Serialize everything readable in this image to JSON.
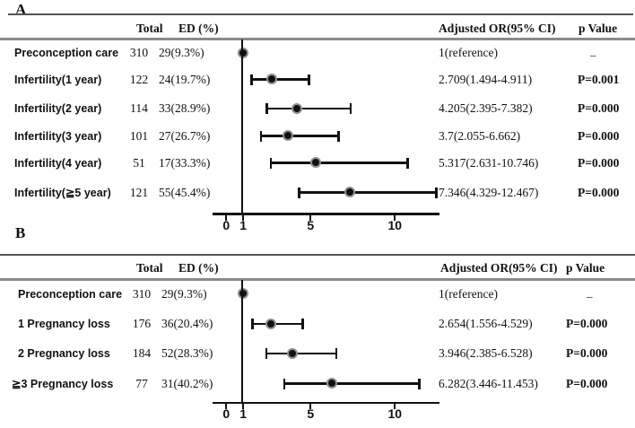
{
  "colors": {
    "ink": "#111111",
    "rule_dark": "#555555",
    "rule_gray": "#8a8a8a",
    "marker_core": "#111111",
    "marker_ring": "#8f8f8f"
  },
  "panels": [
    {
      "panel_label": "A",
      "columns": {
        "total": "Total",
        "ed": "ED (%)",
        "or": "Adjusted OR(95% CI)",
        "p": "p Value"
      },
      "axis_ticks": [
        "0",
        "1",
        "5",
        "10"
      ],
      "rows": [
        {
          "label": "Preconception care",
          "total": "310",
          "ed": "29(9.3%)",
          "or_text": "1(reference)",
          "p_text": "_",
          "or": 1,
          "lo": null,
          "hi": null,
          "reference": true
        },
        {
          "label": "Infertility(1 year)",
          "total": "122",
          "ed": "24(19.7%)",
          "or_text": "2.709(1.494-4.911)",
          "p_text": "P=0.001",
          "or": 2.709,
          "lo": 1.494,
          "hi": 4.911,
          "reference": false
        },
        {
          "label": "Infertility(2 year)",
          "total": "114",
          "ed": "33(28.9%)",
          "or_text": "4.205(2.395-7.382)",
          "p_text": "P=0.000",
          "or": 4.205,
          "lo": 2.395,
          "hi": 7.382,
          "reference": false
        },
        {
          "label": "Infertility(3 year)",
          "total": "101",
          "ed": "27(26.7%)",
          "or_text": "3.7(2.055-6.662)",
          "p_text": "P=0.000",
          "or": 3.7,
          "lo": 2.055,
          "hi": 6.662,
          "reference": false
        },
        {
          "label": "Infertility(4 year)",
          "total": "51",
          "ed": "17(33.3%)",
          "or_text": "5.317(2.631-10.746)",
          "p_text": "P=0.000",
          "or": 5.317,
          "lo": 2.631,
          "hi": 10.746,
          "reference": false
        },
        {
          "label": "Infertility(≧5 year)",
          "total": "121",
          "ed": "55(45.4%)",
          "or_text": "7.346(4.329-12.467)",
          "p_text": "P=0.000",
          "or": 7.346,
          "lo": 4.329,
          "hi": 12.467,
          "reference": false
        }
      ]
    },
    {
      "panel_label": "B",
      "columns": {
        "total": "Total",
        "ed": "ED (%)",
        "or": "Adjusted OR(95% CI)",
        "p": "p Value"
      },
      "axis_ticks": [
        "0",
        "1",
        "5",
        "10"
      ],
      "rows": [
        {
          "label": "Preconception care",
          "total": "310",
          "ed": "29(9.3%)",
          "or_text": "1(reference)",
          "p_text": "_",
          "or": 1,
          "lo": null,
          "hi": null,
          "reference": true
        },
        {
          "label": "1 Pregnancy loss",
          "total": "176",
          "ed": "36(20.4%)",
          "or_text": "2.654(1.556-4.529)",
          "p_text": "P=0.000",
          "or": 2.654,
          "lo": 1.556,
          "hi": 4.529,
          "reference": false
        },
        {
          "label": "2 Pregnancy loss",
          "total": "184",
          "ed": "52(28.3%)",
          "or_text": "3.946(2.385-6.528)",
          "p_text": "P=0.000",
          "or": 3.946,
          "lo": 2.385,
          "hi": 6.528,
          "reference": false
        },
        {
          "label": "≧3 Pregnancy loss",
          "total": "77",
          "ed": "31(40.2%)",
          "or_text": "6.282(3.446-11.453)",
          "p_text": "P=0.000",
          "or": 6.282,
          "lo": 3.446,
          "hi": 11.453,
          "reference": false
        }
      ]
    }
  ],
  "chart_data": [
    {
      "type": "scatter",
      "subtype": "forest-plot",
      "title": "A",
      "categories": [
        "Preconception care",
        "Infertility(1 year)",
        "Infertility(2 year)",
        "Infertility(3 year)",
        "Infertility(4 year)",
        "Infertility(≧5 year)"
      ],
      "series": [
        {
          "name": "Adjusted OR",
          "values": [
            1,
            2.709,
            4.205,
            3.7,
            5.317,
            7.346
          ]
        },
        {
          "name": "CI low",
          "values": [
            null,
            1.494,
            2.395,
            2.055,
            2.631,
            4.329
          ]
        },
        {
          "name": "CI high",
          "values": [
            null,
            4.911,
            7.382,
            6.662,
            10.746,
            12.467
          ]
        }
      ],
      "table_columns": {
        "Total": [
          310,
          122,
          114,
          101,
          51,
          121
        ],
        "ED (%)": [
          "29(9.3%)",
          "24(19.7%)",
          "33(28.9%)",
          "27(26.7%)",
          "17(33.3%)",
          "55(45.4%)"
        ],
        "Adjusted OR(95% CI)": [
          "1(reference)",
          "2.709(1.494-4.911)",
          "4.205(2.395-7.382)",
          "3.7(2.055-6.662)",
          "5.317(2.631-10.746)",
          "7.346(4.329-12.467)"
        ],
        "p Value": [
          "_",
          "P=0.001",
          "P=0.000",
          "P=0.000",
          "P=0.000",
          "P=0.000"
        ]
      },
      "xlabel": "",
      "ylabel": "",
      "xlim": [
        0,
        12.7
      ],
      "x_ticks": [
        0,
        1,
        5,
        10
      ],
      "reference_line_x": 1,
      "grid": false,
      "legend": false
    },
    {
      "type": "scatter",
      "subtype": "forest-plot",
      "title": "B",
      "categories": [
        "Preconception care",
        "1 Pregnancy loss",
        "2 Pregnancy loss",
        "≧3 Pregnancy loss"
      ],
      "series": [
        {
          "name": "Adjusted OR",
          "values": [
            1,
            2.654,
            3.946,
            6.282
          ]
        },
        {
          "name": "CI low",
          "values": [
            null,
            1.556,
            2.385,
            3.446
          ]
        },
        {
          "name": "CI high",
          "values": [
            null,
            4.529,
            6.528,
            11.453
          ]
        }
      ],
      "table_columns": {
        "Total": [
          310,
          176,
          184,
          77
        ],
        "ED (%)": [
          "29(9.3%)",
          "36(20.4%)",
          "52(28.3%)",
          "31(40.2%)"
        ],
        "Adjusted OR(95% CI)": [
          "1(reference)",
          "2.654(1.556-4.529)",
          "3.946(2.385-6.528)",
          "6.282(3.446-11.453)"
        ],
        "p Value": [
          "_",
          "P=0.000",
          "P=0.000",
          "P=0.000"
        ]
      },
      "xlabel": "",
      "ylabel": "",
      "xlim": [
        0,
        12.7
      ],
      "x_ticks": [
        0,
        1,
        5,
        10
      ],
      "reference_line_x": 1,
      "grid": false,
      "legend": false
    }
  ]
}
